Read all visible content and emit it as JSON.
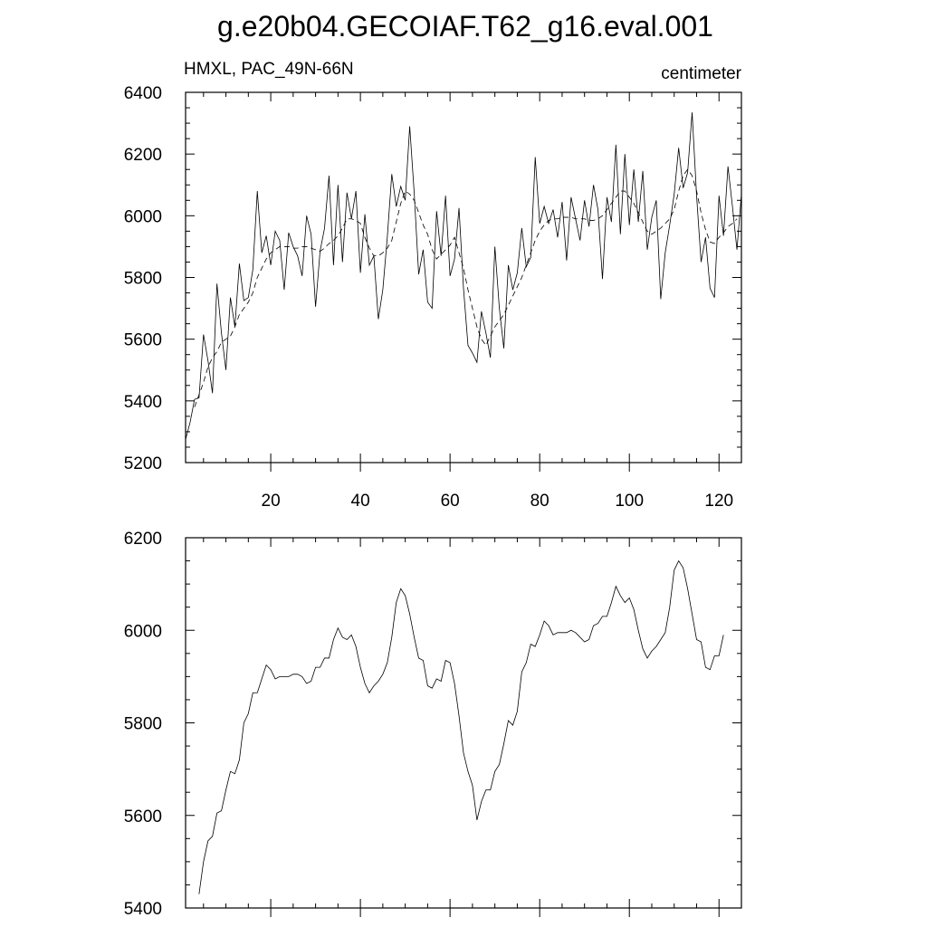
{
  "header": {
    "title": "g.e20b04.GECOIAF.T62_g16.eval.001"
  },
  "chart_data": [
    {
      "type": "line",
      "subtitle_left": "HMXL, PAC_49N-66N",
      "subtitle_right": "centimeter",
      "xlim": [
        1,
        125
      ],
      "ylim": [
        5200,
        6400
      ],
      "x_ticks": [
        20,
        40,
        60,
        80,
        100,
        120
      ],
      "y_ticks": [
        5200,
        5400,
        5600,
        5800,
        6000,
        6200,
        6400
      ],
      "series": [
        {
          "style": "solid",
          "x_start": 1,
          "values": [
            5275,
            5330,
            5405,
            5410,
            5615,
            5530,
            5425,
            5780,
            5620,
            5500,
            5735,
            5640,
            5845,
            5725,
            5735,
            5825,
            6080,
            5880,
            5935,
            5840,
            5950,
            5920,
            5760,
            5945,
            5900,
            5870,
            5805,
            6000,
            5940,
            5705,
            5885,
            5960,
            6130,
            5840,
            6100,
            5850,
            6075,
            5990,
            6080,
            5815,
            6005,
            5840,
            5870,
            5665,
            5760,
            5930,
            6135,
            6030,
            6095,
            6050,
            6290,
            6075,
            5810,
            5890,
            5720,
            5700,
            6015,
            5870,
            6065,
            5805,
            5860,
            6025,
            5765,
            5580,
            5555,
            5525,
            5690,
            5620,
            5540,
            5900,
            5700,
            5570,
            5840,
            5760,
            5815,
            5960,
            5835,
            5865,
            6190,
            5975,
            6030,
            5975,
            6020,
            5930,
            6045,
            5855,
            6060,
            5990,
            5920,
            6050,
            5965,
            6100,
            6020,
            5795,
            6060,
            5980,
            6230,
            5940,
            6200,
            5970,
            6150,
            5980,
            6145,
            5890,
            5995,
            6050,
            5730,
            5880,
            5970,
            6070,
            6220,
            6090,
            6140,
            6335,
            6065,
            5850,
            5930,
            5765,
            5735,
            6065,
            5935,
            6160,
            6030,
            5890,
            6070
          ]
        },
        {
          "style": "dashed",
          "x_start": 3,
          "values": [
            5380,
            5420,
            5460,
            5510,
            5540,
            5560,
            5590,
            5600,
            5610,
            5640,
            5680,
            5700,
            5720,
            5750,
            5800,
            5830,
            5860,
            5880,
            5890,
            5900,
            5900,
            5900,
            5895,
            5895,
            5900,
            5900,
            5895,
            5890,
            5885,
            5895,
            5910,
            5920,
            5935,
            5960,
            5990,
            5990,
            5985,
            5975,
            5930,
            5895,
            5870,
            5870,
            5880,
            5895,
            5920,
            5980,
            6040,
            6080,
            6070,
            6050,
            6010,
            5970,
            5940,
            5890,
            5860,
            5875,
            5890,
            5905,
            5930,
            5880,
            5830,
            5760,
            5700,
            5640,
            5600,
            5580,
            5610,
            5640,
            5660,
            5680,
            5710,
            5740,
            5770,
            5800,
            5840,
            5880,
            5920,
            5950,
            5970,
            5985,
            5990,
            5990,
            5995,
            5995,
            5995,
            5990,
            5990,
            5990,
            5985,
            5985,
            5990,
            6000,
            6020,
            6040,
            6060,
            6080,
            6080,
            6060,
            6040,
            6010,
            5980,
            5950,
            5940,
            5950,
            5960,
            5975,
            5990,
            6020,
            6080,
            6130,
            6150,
            6130,
            6080,
            6010,
            5955,
            5915,
            5910,
            5930,
            5945,
            5965,
            5975,
            5990
          ]
        }
      ]
    },
    {
      "type": "line",
      "xlim": [
        1,
        125
      ],
      "ylim": [
        5400,
        6200
      ],
      "x_ticks": [],
      "y_ticks": [
        5400,
        5600,
        5800,
        6000,
        6200
      ],
      "series": [
        {
          "style": "solid",
          "x_start": 4,
          "values": [
            5430,
            5500,
            5545,
            5555,
            5605,
            5610,
            5655,
            5695,
            5690,
            5720,
            5800,
            5820,
            5865,
            5865,
            5895,
            5925,
            5915,
            5895,
            5900,
            5900,
            5900,
            5905,
            5905,
            5900,
            5885,
            5890,
            5920,
            5920,
            5940,
            5940,
            5980,
            6005,
            5985,
            5980,
            5990,
            5965,
            5920,
            5885,
            5865,
            5880,
            5890,
            5905,
            5930,
            5985,
            6060,
            6090,
            6075,
            6035,
            5985,
            5940,
            5935,
            5880,
            5875,
            5895,
            5890,
            5935,
            5930,
            5885,
            5815,
            5735,
            5695,
            5665,
            5590,
            5630,
            5655,
            5655,
            5695,
            5710,
            5755,
            5805,
            5795,
            5825,
            5910,
            5930,
            5970,
            5965,
            5990,
            6020,
            6010,
            5990,
            5995,
            5995,
            5995,
            6000,
            5995,
            5985,
            5975,
            5980,
            6010,
            6015,
            6030,
            6030,
            6060,
            6095,
            6075,
            6060,
            6070,
            6045,
            6000,
            5960,
            5940,
            5955,
            5965,
            5980,
            5995,
            6050,
            6130,
            6150,
            6135,
            6090,
            6035,
            5980,
            5975,
            5920,
            5915,
            5945,
            5945,
            5990
          ]
        }
      ]
    }
  ]
}
